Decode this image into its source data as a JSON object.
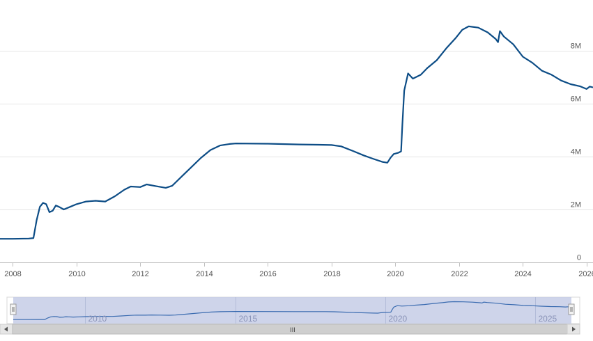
{
  "chart_data": {
    "type": "line",
    "title": "",
    "xlabel": "",
    "ylabel": "",
    "x_range": [
      2007.6,
      2026.2
    ],
    "ylim": [
      0,
      9.4
    ],
    "y_unit_label": "M",
    "y_ticks": [
      {
        "value": 0,
        "label": "0"
      },
      {
        "value": 2,
        "label": "2M"
      },
      {
        "value": 4,
        "label": "4M"
      },
      {
        "value": 6,
        "label": "6M"
      },
      {
        "value": 8,
        "label": "8M"
      }
    ],
    "x_ticks": [
      {
        "value": 2008,
        "label": "2008"
      },
      {
        "value": 2010,
        "label": "2010"
      },
      {
        "value": 2012,
        "label": "2012"
      },
      {
        "value": 2014,
        "label": "2014"
      },
      {
        "value": 2016,
        "label": "2016"
      },
      {
        "value": 2018,
        "label": "2018"
      },
      {
        "value": 2020,
        "label": "2020"
      },
      {
        "value": 2022,
        "label": "2022"
      },
      {
        "value": 2024,
        "label": "2024"
      },
      {
        "value": 2026,
        "label": "2026"
      }
    ],
    "grid": true,
    "series": [
      {
        "color": "#0d4d86",
        "points": [
          [
            2007.6,
            0.89
          ],
          [
            2008.0,
            0.89
          ],
          [
            2008.5,
            0.9
          ],
          [
            2008.65,
            0.92
          ],
          [
            2008.75,
            1.6
          ],
          [
            2008.85,
            2.1
          ],
          [
            2008.95,
            2.25
          ],
          [
            2009.05,
            2.2
          ],
          [
            2009.15,
            1.9
          ],
          [
            2009.25,
            1.95
          ],
          [
            2009.35,
            2.15
          ],
          [
            2009.45,
            2.1
          ],
          [
            2009.6,
            2.0
          ],
          [
            2009.8,
            2.1
          ],
          [
            2010.0,
            2.2
          ],
          [
            2010.3,
            2.3
          ],
          [
            2010.6,
            2.33
          ],
          [
            2010.9,
            2.3
          ],
          [
            2011.2,
            2.5
          ],
          [
            2011.5,
            2.75
          ],
          [
            2011.7,
            2.87
          ],
          [
            2012.0,
            2.85
          ],
          [
            2012.2,
            2.95
          ],
          [
            2012.5,
            2.88
          ],
          [
            2012.8,
            2.82
          ],
          [
            2013.0,
            2.9
          ],
          [
            2013.3,
            3.25
          ],
          [
            2013.6,
            3.6
          ],
          [
            2013.9,
            3.95
          ],
          [
            2014.2,
            4.25
          ],
          [
            2014.5,
            4.42
          ],
          [
            2014.8,
            4.48
          ],
          [
            2015.0,
            4.5
          ],
          [
            2016.0,
            4.49
          ],
          [
            2017.0,
            4.46
          ],
          [
            2017.6,
            4.45
          ],
          [
            2018.0,
            4.44
          ],
          [
            2018.3,
            4.39
          ],
          [
            2018.7,
            4.2
          ],
          [
            2019.0,
            4.05
          ],
          [
            2019.3,
            3.92
          ],
          [
            2019.6,
            3.8
          ],
          [
            2019.75,
            3.77
          ],
          [
            2019.85,
            3.96
          ],
          [
            2019.95,
            4.1
          ],
          [
            2020.1,
            4.15
          ],
          [
            2020.18,
            4.2
          ],
          [
            2020.22,
            5.2
          ],
          [
            2020.28,
            6.5
          ],
          [
            2020.4,
            7.15
          ],
          [
            2020.55,
            6.95
          ],
          [
            2020.8,
            7.1
          ],
          [
            2021.0,
            7.35
          ],
          [
            2021.3,
            7.65
          ],
          [
            2021.6,
            8.1
          ],
          [
            2021.9,
            8.5
          ],
          [
            2022.1,
            8.8
          ],
          [
            2022.3,
            8.93
          ],
          [
            2022.6,
            8.88
          ],
          [
            2022.9,
            8.7
          ],
          [
            2023.15,
            8.45
          ],
          [
            2023.22,
            8.33
          ],
          [
            2023.28,
            8.75
          ],
          [
            2023.4,
            8.55
          ],
          [
            2023.7,
            8.25
          ],
          [
            2024.0,
            7.78
          ],
          [
            2024.3,
            7.55
          ],
          [
            2024.6,
            7.25
          ],
          [
            2024.9,
            7.1
          ],
          [
            2025.2,
            6.88
          ],
          [
            2025.5,
            6.74
          ],
          [
            2025.8,
            6.66
          ],
          [
            2026.0,
            6.56
          ],
          [
            2026.1,
            6.65
          ],
          [
            2026.2,
            6.62
          ]
        ]
      }
    ],
    "navigator": {
      "labels": [
        {
          "value": 2010,
          "label": "2010"
        },
        {
          "value": 2015,
          "label": "2015"
        },
        {
          "value": 2020,
          "label": "2020"
        },
        {
          "value": 2025,
          "label": "2025"
        }
      ],
      "selected_fill": "#c5cde6",
      "scrollbar_grip": "III"
    }
  }
}
